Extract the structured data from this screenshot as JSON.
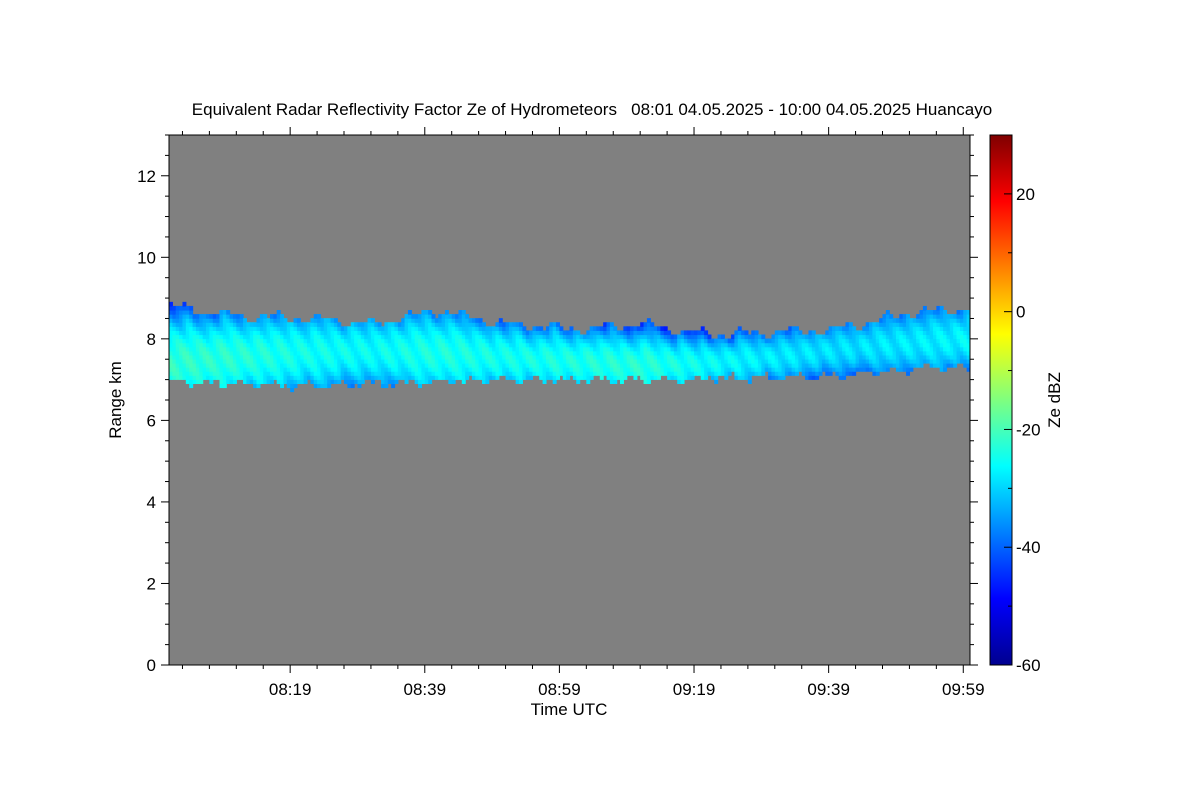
{
  "chart_data": {
    "type": "heatmap",
    "title": "Equivalent Radar Reflectivity Factor Ze of Hydrometeors   08:01 04.05.2025 - 10:00 04.05.2025 Huancayo",
    "xlabel": "Time UTC",
    "ylabel": "Range km",
    "x_range": [
      "08:01",
      "10:00"
    ],
    "x_ticks": [
      "08:19",
      "08:39",
      "08:59",
      "09:19",
      "09:39",
      "09:59"
    ],
    "ylim": [
      0,
      13
    ],
    "y_ticks": [
      0,
      2,
      4,
      6,
      8,
      10,
      12
    ],
    "background_color": "#808080",
    "colorbar": {
      "label": "Ze dBZ",
      "range": [
        -60,
        30
      ],
      "ticks": [
        -60,
        -40,
        -20,
        0,
        20
      ],
      "colormap": "jet"
    },
    "echo_layer": {
      "description_values": "cloud layer of Ze between about -35 and -20 dBZ",
      "time_minutes_from_0801": [
        0,
        10,
        20,
        30,
        40,
        50,
        60,
        70,
        80,
        90,
        100,
        110,
        119
      ],
      "base_km": [
        6.9,
        6.85,
        6.8,
        6.85,
        6.9,
        6.95,
        6.95,
        6.95,
        7.0,
        7.0,
        7.05,
        7.2,
        7.25
      ],
      "top_km": [
        8.75,
        8.5,
        8.45,
        8.3,
        8.65,
        8.3,
        8.2,
        8.3,
        8.05,
        8.1,
        8.2,
        8.6,
        8.7
      ],
      "peak_km": [
        7.4,
        7.55,
        7.65,
        7.7,
        7.65,
        7.55,
        7.45,
        7.35,
        7.4,
        7.55,
        7.75,
        7.9,
        8.0
      ],
      "peak_dbz": [
        -22,
        -23,
        -25,
        -26,
        -24,
        -25,
        -24,
        -23,
        -26,
        -28,
        -29,
        -28,
        -27
      ]
    }
  }
}
